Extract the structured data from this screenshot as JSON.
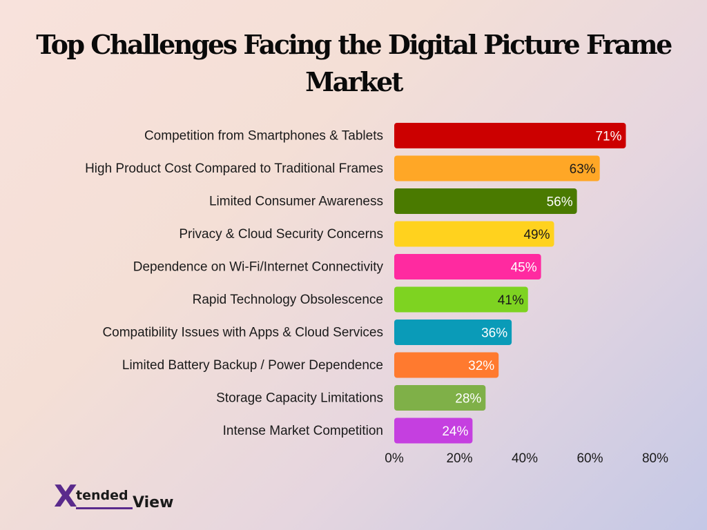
{
  "chart_data": {
    "type": "bar",
    "orientation": "horizontal",
    "title": "Top Challenges Facing the Digital Picture Frame Market",
    "categories": [
      "Competition from Smartphones & Tablets",
      "High Product Cost Compared to Traditional Frames",
      "Limited Consumer Awareness",
      "Privacy & Cloud Security Concerns",
      "Dependence on Wi-Fi/Internet Connectivity",
      "Rapid Technology Obsolescence",
      "Compatibility Issues with Apps & Cloud Services",
      "Limited Battery Backup / Power Dependence",
      "Storage Capacity Limitations",
      "Intense Market Competition"
    ],
    "values": [
      71,
      63,
      56,
      49,
      45,
      41,
      36,
      32,
      28,
      24
    ],
    "value_labels": [
      "71%",
      "63%",
      "56%",
      "49%",
      "45%",
      "41%",
      "36%",
      "32%",
      "28%",
      "24%"
    ],
    "colors": [
      "#cc0000",
      "#ffa726",
      "#4a7a00",
      "#ffd21e",
      "#ff2aa0",
      "#7ed321",
      "#0a9bb8",
      "#ff7a2f",
      "#7fb048",
      "#c53fe0"
    ],
    "label_colors": [
      "#ffffff",
      "#1a1a1a",
      "#ffffff",
      "#1a1a1a",
      "#ffffff",
      "#1a1a1a",
      "#ffffff",
      "#ffffff",
      "#ffffff",
      "#ffffff"
    ],
    "xlim": [
      0,
      80
    ],
    "xticks": [
      0,
      20,
      40,
      60,
      80
    ],
    "xtick_labels": [
      "0%",
      "20%",
      "40%",
      "60%",
      "80%"
    ],
    "grid": false,
    "legend": "none"
  },
  "logo": {
    "text_x": "X",
    "text_tended": "tended",
    "text_view": "View"
  }
}
